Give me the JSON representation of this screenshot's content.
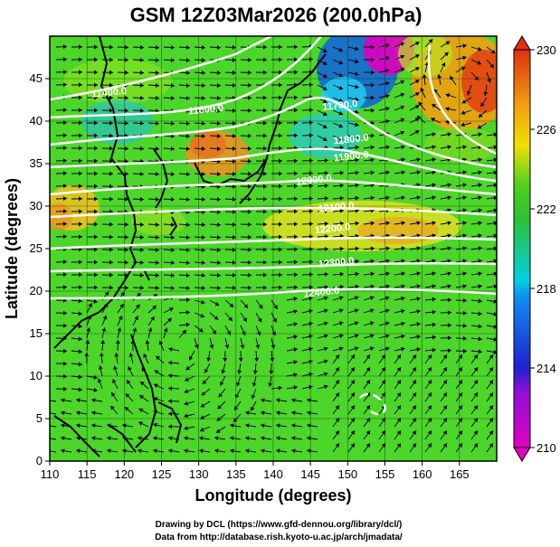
{
  "title": "GSM 12Z03Mar2026 (200.0hPa)",
  "credits": [
    "Drawing by DCL (https://www.gfd-dennou.org/library/dcl/)",
    "Data from http://database.rish.kyoto-u.ac.jp/arch/jmadata/"
  ],
  "chart_data": {
    "type": "heatmap",
    "title": "GSM 12Z03Mar2026 (200.0hPa)",
    "xlabel": "Longitude (degrees)",
    "ylabel": "Latitude  (degrees)",
    "xlim": [
      110,
      170
    ],
    "ylim": [
      0,
      50
    ],
    "xticks": [
      110,
      115,
      120,
      125,
      130,
      135,
      140,
      145,
      150,
      155,
      160,
      165
    ],
    "yticks": [
      0,
      5,
      10,
      15,
      20,
      25,
      30,
      35,
      40,
      45
    ],
    "colorbar": {
      "range": [
        210,
        230
      ],
      "ticks": [
        210,
        214,
        218,
        222,
        226,
        230
      ],
      "colors": [
        "#e000c0",
        "#2020d0",
        "#00c8f0",
        "#20c020",
        "#f0e000",
        "#e03010"
      ]
    },
    "contour_labels": [
      {
        "text": "11400.0",
        "lon": 118.0,
        "lat": 43.0
      },
      {
        "text": "11600.0",
        "lon": 131.0,
        "lat": 41.0
      },
      {
        "text": "11700.0",
        "lon": 149.0,
        "lat": 41.5
      },
      {
        "text": "11800.0",
        "lon": 150.5,
        "lat": 37.5
      },
      {
        "text": "11900.0",
        "lon": 150.5,
        "lat": 35.5
      },
      {
        "text": "12000.0",
        "lon": 145.5,
        "lat": 32.7
      },
      {
        "text": "12100.0",
        "lon": 148.5,
        "lat": 29.5
      },
      {
        "text": "12200.0",
        "lon": 148.0,
        "lat": 27.0
      },
      {
        "text": "12300.0",
        "lon": 148.5,
        "lat": 23.0
      },
      {
        "text": "12400.0",
        "lon": 146.5,
        "lat": 19.5
      }
    ],
    "annotations": [
      "wind vectors (arrows)",
      "geopotential height contours (white)",
      "temperature shading"
    ]
  }
}
